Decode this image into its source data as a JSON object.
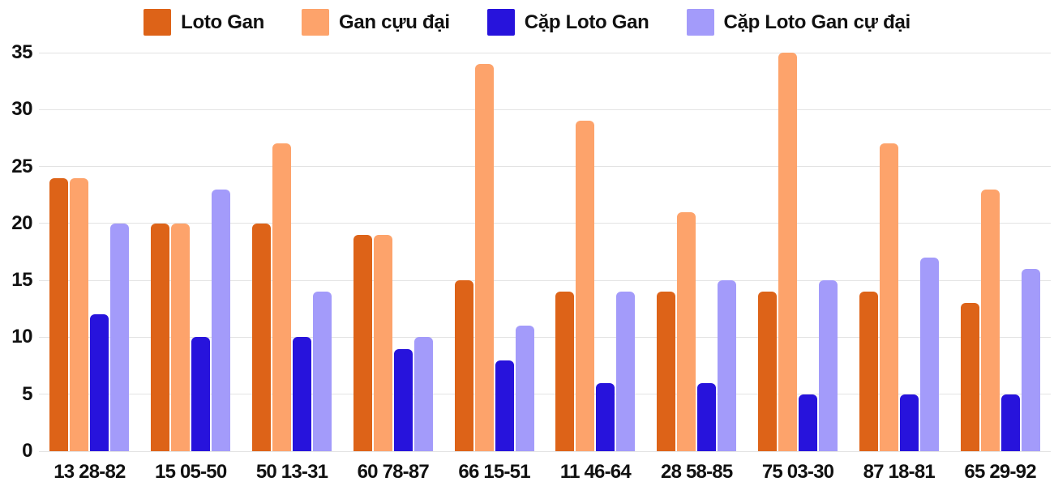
{
  "chart_data": {
    "type": "bar",
    "title": "",
    "xlabel": "",
    "ylabel": "",
    "categories": [
      "13 28-82",
      "15 05-50",
      "50 13-31",
      "60 78-87",
      "66 15-51",
      "11 46-64",
      "28 58-85",
      "75 03-30",
      "87 18-81",
      "65 29-92"
    ],
    "series": [
      {
        "name": "Loto Gan",
        "color": "#dd6318",
        "values": [
          24,
          20,
          20,
          19,
          15,
          14,
          14,
          14,
          14,
          13
        ]
      },
      {
        "name": "Gan cựu đại",
        "color": "#fda36b",
        "values": [
          24,
          20,
          27,
          19,
          34,
          29,
          21,
          35,
          27,
          23
        ]
      },
      {
        "name": "Cặp Loto Gan",
        "color": "#2713dc",
        "values": [
          12,
          10,
          10,
          9,
          8,
          6,
          6,
          5,
          5,
          5
        ]
      },
      {
        "name": "Cặp Loto Gan cự đại",
        "color": "#a39bfa",
        "values": [
          20,
          23,
          14,
          10,
          11,
          14,
          15,
          15,
          17,
          16
        ]
      }
    ],
    "y_ticks": [
      0,
      5,
      10,
      15,
      20,
      25,
      30,
      35
    ],
    "ylim": [
      0,
      35
    ],
    "grid": "horizontal-only",
    "gridline_color": "#e3e3e3",
    "text_color": "#111111",
    "background_color": "#ffffff",
    "legend_position": "top-center"
  }
}
